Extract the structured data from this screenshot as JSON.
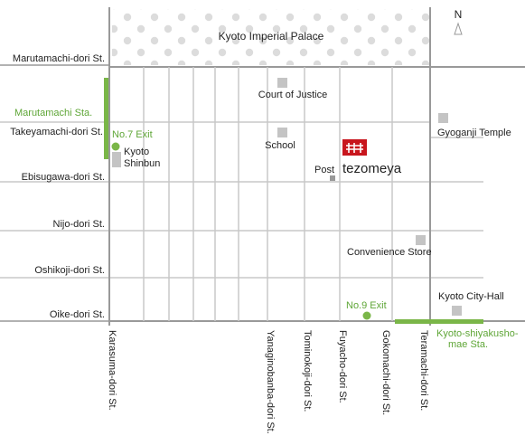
{
  "map": {
    "palace_label": "Kyoto Imperial Palace",
    "compass_label": "N",
    "colors": {
      "street": "#c8c8c8",
      "street_main": "#999999",
      "subway": "#7ab648",
      "landmark": "#c4c4c4",
      "marker": "#c8161d",
      "text": "#222222",
      "green_text": "#5fa637"
    },
    "ew_streets": [
      "Marutamachi-dori St.",
      "Takeyamachi-dori St.",
      "Ebisugawa-dori St.",
      "Nijo-dori St.",
      "Oshikoji-dori St.",
      "Oike-dori St."
    ],
    "ns_streets": [
      "Karasuma-dori St.",
      "Yanaginobanba-dori St.",
      "Tominokoji-dori St.",
      "Fuyacho-dori St.",
      "Gokomachi-dori St.",
      "Teramachi-dori St."
    ],
    "landmarks": {
      "court": "Court of Justice",
      "school": "School",
      "post": "Post",
      "gyoganji": "Gyoganji Temple",
      "convenience": "Convenience Store",
      "city_hall": "Kyoto City-Hall",
      "kyoto_shinbun_1": "Kyoto",
      "kyoto_shinbun_2": "Shinbun"
    },
    "stations": {
      "marutamachi": "Marutamachi Sta.",
      "no7_exit": "No.7 Exit",
      "no9_exit": "No.9 Exit",
      "shiyakusho_1": "Kyoto-shiyakusho-",
      "shiyakusho_2": "mae Sta."
    },
    "destination": "tezomeya"
  }
}
